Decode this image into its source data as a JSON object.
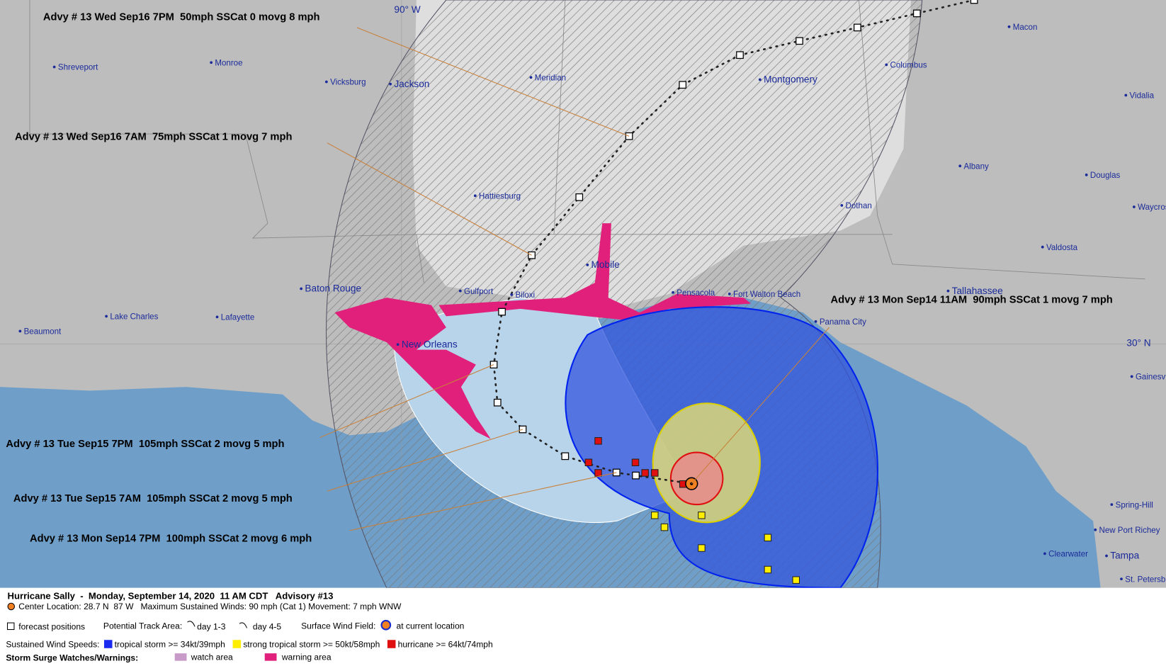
{
  "map": {
    "grid_labels": [
      "90° W",
      "30° N"
    ],
    "cities": [
      "Shreveport",
      "Monroe",
      "Vicksburg",
      "Jackson",
      "Meridian",
      "Montgomery",
      "Columbus",
      "Macon",
      "Vidalia",
      "Albany",
      "Douglas",
      "Hattiesburg",
      "Dothan",
      "Waycross",
      "Valdosta",
      "Mobile",
      "Baton Rouge",
      "Gulfport",
      "Biloxi",
      "Pensacola",
      "Fort Walton Beach",
      "Tallahassee",
      "Panama City",
      "Lake Charles",
      "Lafayette",
      "Beaumont",
      "New Orleans",
      "Gainesville",
      "Spring-Hill",
      "New Port Richey",
      "Clearwater",
      "Tampa",
      "St. Petersburg"
    ],
    "advisories": [
      "Advy # 13 Wed Sep16 7PM  50mph SSCat 0 movg 8 mph",
      "Advy # 13 Wed Sep16 7AM  75mph SSCat 1 movg 7 mph",
      "Advy # 13 Mon Sep14 11AM  90mph SSCat 1 movg 7 mph",
      "Advy # 13 Tue Sep15 7PM  105mph SSCat 2 movg 5 mph",
      "Advy # 13 Tue Sep15 7AM  105mph SSCat 2 movg 5 mph",
      "Advy # 13 Mon Sep14 7PM  100mph SSCat 2 movg 6 mph"
    ]
  },
  "legend": {
    "title": "Hurricane Sally  -  Monday, September 14, 2020  11 AM CDT   Advisory #13",
    "info": "Center Location: 28.7 N  87 W   Maximum Sustained Winds: 90 mph (Cat 1) Movement: 7 mph WNW",
    "forecast_positions": "forecast positions",
    "track_area": "Potential Track Area:",
    "day13": "day 1-3",
    "day45": "day 4-5",
    "wind_field": "Surface Wind Field:",
    "current": "at current location",
    "wind_speeds": "Sustained Wind Speeds:",
    "ts": "tropical storm >= 34kt/39mph",
    "sts": "strong tropical storm >= 50kt/58mph",
    "hu": "hurricane >= 64kt/74mph",
    "surge": "Storm Surge Watches/Warnings:",
    "watch": "watch area",
    "warning": "warning area"
  }
}
